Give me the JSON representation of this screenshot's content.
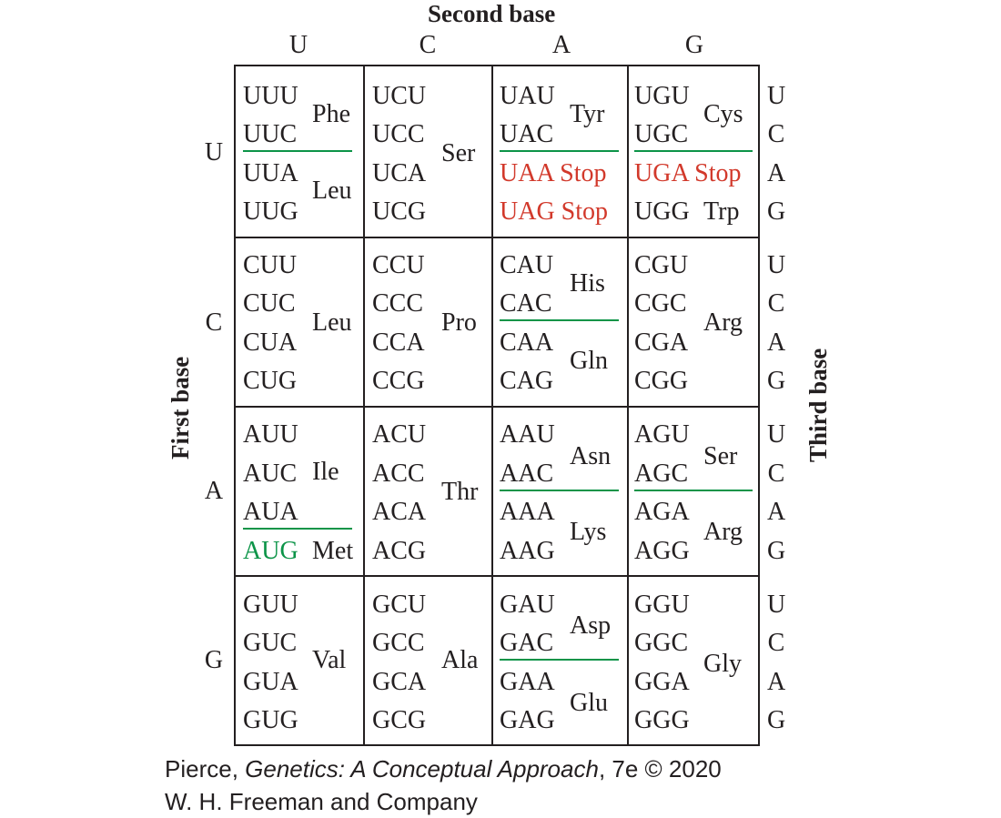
{
  "headings": {
    "second_base": "Second base",
    "first_base": "First base",
    "third_base": "Third base"
  },
  "column_bases": [
    "U",
    "C",
    "A",
    "G"
  ],
  "row_bases": [
    "U",
    "C",
    "A",
    "G"
  ],
  "third_bases": [
    "U",
    "C",
    "A",
    "G"
  ],
  "colors": {
    "stop": "#d2392b",
    "start": "#0c9448",
    "ink": "#231f20"
  },
  "cells": {
    "UU": {
      "codons": [
        "UUU",
        "UUC",
        "UUA",
        "UUG"
      ],
      "aa": [
        "Phe",
        "Leu"
      ]
    },
    "UC": {
      "codons": [
        "UCU",
        "UCC",
        "UCA",
        "UCG"
      ],
      "aa": [
        "Ser"
      ]
    },
    "UA": {
      "codons": [
        "UAU",
        "UAC",
        "UAA Stop",
        "UAG Stop"
      ],
      "aa": [
        "Tyr"
      ]
    },
    "UG": {
      "codons": [
        "UGU",
        "UGC",
        "UGA Stop",
        "UGG"
      ],
      "aa": [
        "Cys",
        "Trp"
      ]
    },
    "CU": {
      "codons": [
        "CUU",
        "CUC",
        "CUA",
        "CUG"
      ],
      "aa": [
        "Leu"
      ]
    },
    "CC": {
      "codons": [
        "CCU",
        "CCC",
        "CCA",
        "CCG"
      ],
      "aa": [
        "Pro"
      ]
    },
    "CA": {
      "codons": [
        "CAU",
        "CAC",
        "CAA",
        "CAG"
      ],
      "aa": [
        "His",
        "Gln"
      ]
    },
    "CG": {
      "codons": [
        "CGU",
        "CGC",
        "CGA",
        "CGG"
      ],
      "aa": [
        "Arg"
      ]
    },
    "AU": {
      "codons": [
        "AUU",
        "AUC",
        "AUA",
        "AUG"
      ],
      "aa": [
        "Ile",
        "Met"
      ]
    },
    "AC": {
      "codons": [
        "ACU",
        "ACC",
        "ACA",
        "ACG"
      ],
      "aa": [
        "Thr"
      ]
    },
    "AA": {
      "codons": [
        "AAU",
        "AAC",
        "AAA",
        "AAG"
      ],
      "aa": [
        "Asn",
        "Lys"
      ]
    },
    "AG": {
      "codons": [
        "AGU",
        "AGC",
        "AGA",
        "AGG"
      ],
      "aa": [
        "Ser",
        "Arg"
      ]
    },
    "GU": {
      "codons": [
        "GUU",
        "GUC",
        "GUA",
        "GUG"
      ],
      "aa": [
        "Val"
      ]
    },
    "GC": {
      "codons": [
        "GCU",
        "GCC",
        "GCA",
        "GCG"
      ],
      "aa": [
        "Ala"
      ]
    },
    "GA": {
      "codons": [
        "GAU",
        "GAC",
        "GAA",
        "GAG"
      ],
      "aa": [
        "Asp",
        "Glu"
      ]
    },
    "GG": {
      "codons": [
        "GGU",
        "GGC",
        "GGA",
        "GGG"
      ],
      "aa": [
        "Gly"
      ]
    }
  },
  "credit": {
    "author": "Pierce, ",
    "book_title": "Genetics: A Conceptual Approach",
    "edition": ", 7e © 2020",
    "publisher": "W. H. Freeman and Company"
  }
}
